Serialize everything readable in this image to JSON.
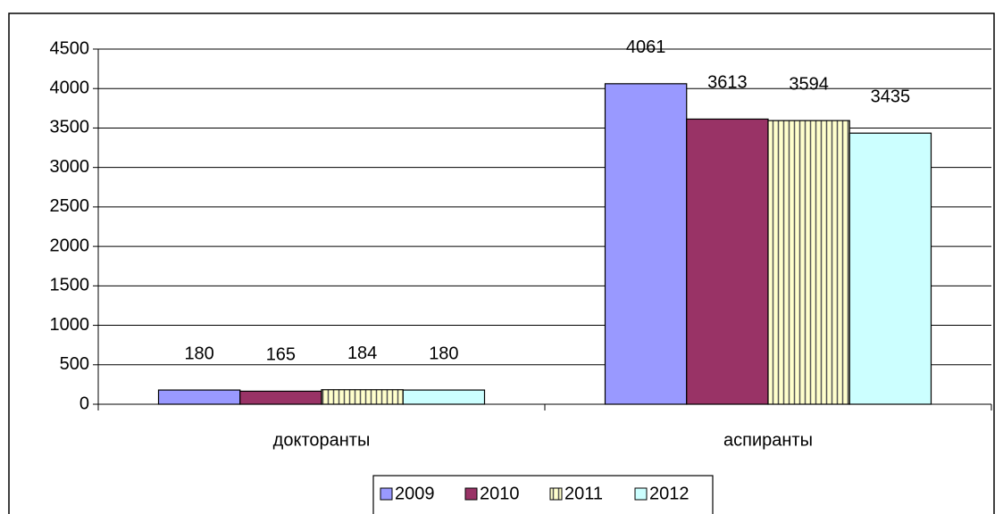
{
  "chart_data": {
    "type": "bar",
    "categories": [
      "докторанты",
      "аспиранты"
    ],
    "series": [
      {
        "name": "2009",
        "color": "#9999ff",
        "values": [
          180,
          4061
        ]
      },
      {
        "name": "2010",
        "color": "#993366",
        "values": [
          165,
          3613
        ]
      },
      {
        "name": "2011",
        "color": "#ffffcc",
        "pattern": "vertical-stripes",
        "values": [
          184,
          3594
        ]
      },
      {
        "name": "2012",
        "color": "#ccffff",
        "values": [
          180,
          3435
        ]
      }
    ],
    "ylim": [
      0,
      4500
    ],
    "yticks": [
      0,
      500,
      1000,
      1500,
      2000,
      2500,
      3000,
      3500,
      4000,
      4500
    ],
    "grid": true,
    "legend": "bottom"
  }
}
